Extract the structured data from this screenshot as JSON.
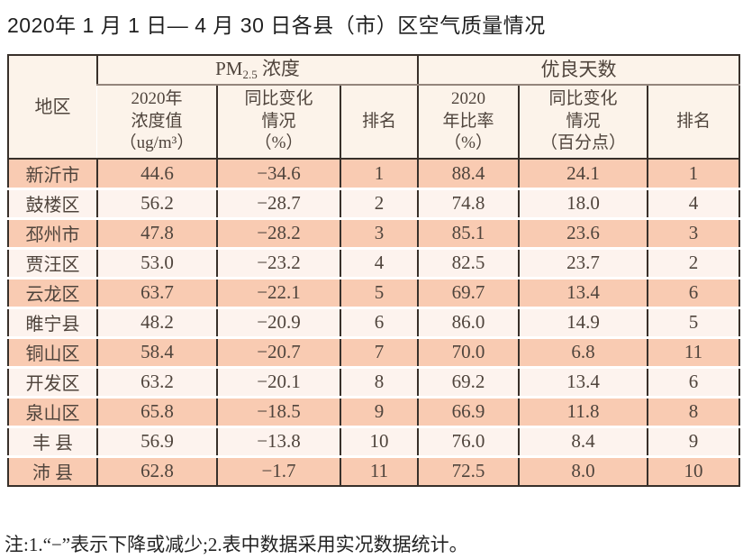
{
  "title": "2020年 1 月 1 日— 4 月 30 日各县（市）区空气质量情况",
  "table": {
    "col_region": "地区",
    "group_pm25": {
      "prefix": "PM",
      "sub": "2.5",
      "suffix": " 浓度"
    },
    "group_days": "优良天数",
    "sub_headers": {
      "pm_value": "2020年\n浓度值\n（ug/m³）",
      "pm_change": "同比变化\n情况\n（%）",
      "pm_rank": "排名",
      "days_ratio": "2020\n年比率\n（%）",
      "days_change": "同比变化\n情况\n（百分点）",
      "days_rank": "排名"
    },
    "rows": [
      {
        "region": "新沂市",
        "pm_value": "44.6",
        "pm_change": "−34.6",
        "pm_rank": "1",
        "days_ratio": "88.4",
        "days_change": "24.1",
        "days_rank": "1"
      },
      {
        "region": "鼓楼区",
        "pm_value": "56.2",
        "pm_change": "−28.7",
        "pm_rank": "2",
        "days_ratio": "74.8",
        "days_change": "18.0",
        "days_rank": "4"
      },
      {
        "region": "邳州市",
        "pm_value": "47.8",
        "pm_change": "−28.2",
        "pm_rank": "3",
        "days_ratio": "85.1",
        "days_change": "23.6",
        "days_rank": "3"
      },
      {
        "region": "贾汪区",
        "pm_value": "53.0",
        "pm_change": "−23.2",
        "pm_rank": "4",
        "days_ratio": "82.5",
        "days_change": "23.7",
        "days_rank": "2"
      },
      {
        "region": "云龙区",
        "pm_value": "63.7",
        "pm_change": "−22.1",
        "pm_rank": "5",
        "days_ratio": "69.7",
        "days_change": "13.4",
        "days_rank": "6"
      },
      {
        "region": "睢宁县",
        "pm_value": "48.2",
        "pm_change": "−20.9",
        "pm_rank": "6",
        "days_ratio": "86.0",
        "days_change": "14.9",
        "days_rank": "5"
      },
      {
        "region": "铜山区",
        "pm_value": "58.4",
        "pm_change": "−20.7",
        "pm_rank": "7",
        "days_ratio": "70.0",
        "days_change": "6.8",
        "days_rank": "11"
      },
      {
        "region": "开发区",
        "pm_value": "63.2",
        "pm_change": "−20.1",
        "pm_rank": "8",
        "days_ratio": "69.2",
        "days_change": "13.4",
        "days_rank": "6"
      },
      {
        "region": "泉山区",
        "pm_value": "65.8",
        "pm_change": "−18.5",
        "pm_rank": "9",
        "days_ratio": "66.9",
        "days_change": "11.8",
        "days_rank": "8"
      },
      {
        "region": "丰 县",
        "pm_value": "56.9",
        "pm_change": "−13.8",
        "pm_rank": "10",
        "days_ratio": "76.0",
        "days_change": "8.4",
        "days_rank": "9"
      },
      {
        "region": "沛 县",
        "pm_value": "62.8",
        "pm_change": "−1.7",
        "pm_rank": "11",
        "days_ratio": "72.5",
        "days_change": "8.0",
        "days_rank": "10"
      }
    ]
  },
  "note": "注:1.“−”表示下降或减少;2.表中数据采用实况数据统计。",
  "colors": {
    "border_dark": "#38302a",
    "border_gray": "#93857c",
    "row_salmon": "#f9cbb2",
    "row_light": "#fdf3ee",
    "header_bg": "#fcf3ea",
    "cell_text": "#4f443c",
    "title_text": "#1f1f1f",
    "note_text": "#232323"
  }
}
